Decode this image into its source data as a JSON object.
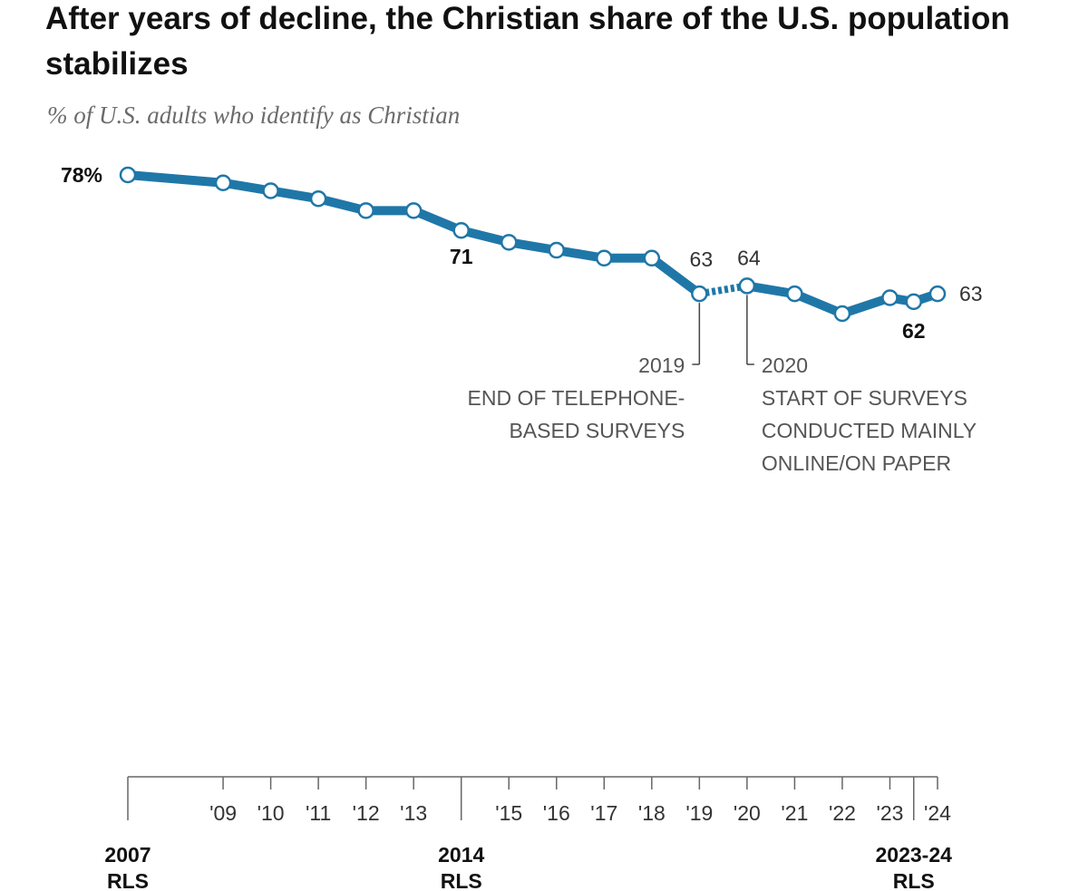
{
  "title": "After years of decline, the Christian share of the U.S. population stabilizes",
  "subtitle": "% of U.S. adults who identify as Christian",
  "colors": {
    "line": "#1f77a8",
    "marker_fill": "#ffffff",
    "text_dark": "#111111",
    "text_gray": "#555555",
    "axis": "#666666"
  },
  "chart_data": {
    "type": "line",
    "title": "After years of decline, the Christian share of the U.S. population stabilizes",
    "subtitle": "% of U.S. adults who identify as Christian",
    "xlabel": "",
    "ylabel": "",
    "x_range": [
      2007,
      2024
    ],
    "y_range": [
      60,
      80
    ],
    "grid": false,
    "series": [
      {
        "name": "",
        "points": [
          {
            "x": 2007,
            "y": 78
          },
          {
            "x": 2009,
            "y": 77
          },
          {
            "x": 2010,
            "y": 76
          },
          {
            "x": 2011,
            "y": 75
          },
          {
            "x": 2012,
            "y": 73.5
          },
          {
            "x": 2013,
            "y": 73.5
          },
          {
            "x": 2014,
            "y": 71
          },
          {
            "x": 2015,
            "y": 69.5
          },
          {
            "x": 2016,
            "y": 68.5
          },
          {
            "x": 2017,
            "y": 67.5
          },
          {
            "x": 2018,
            "y": 67.5
          },
          {
            "x": 2019,
            "y": 63
          },
          {
            "x": 2020,
            "y": 64
          },
          {
            "x": 2021,
            "y": 63
          },
          {
            "x": 2022,
            "y": 60.5
          },
          {
            "x": 2023,
            "y": 62.5
          },
          {
            "x": 2023.5,
            "y": 62
          },
          {
            "x": 2024,
            "y": 63
          }
        ]
      }
    ],
    "break_between": [
      2019,
      2020
    ],
    "data_labels": [
      {
        "x": 2007,
        "y": 78,
        "text": "78%",
        "bold": true
      },
      {
        "x": 2014,
        "y": 71,
        "text": "71",
        "bold": true
      },
      {
        "x": 2019,
        "y": 63,
        "text": "63",
        "bold": false
      },
      {
        "x": 2020,
        "y": 64,
        "text": "64",
        "bold": false
      },
      {
        "x": 2023.5,
        "y": 62,
        "text": "62",
        "bold": true
      },
      {
        "x": 2024,
        "y": 63,
        "text": "63",
        "bold": false
      }
    ],
    "annotations": [
      {
        "x": 2019,
        "side": "left",
        "lines": [
          "2019",
          "END OF TELEPHONE-",
          "BASED SURVEYS"
        ]
      },
      {
        "x": 2020,
        "side": "right",
        "lines": [
          "2020",
          "START OF SURVEYS",
          "CONDUCTED MAINLY",
          "ONLINE/ON PAPER"
        ]
      }
    ],
    "x_ticks": [
      {
        "x": 2007,
        "label": "",
        "major": true
      },
      {
        "x": 2009,
        "label": "'09"
      },
      {
        "x": 2010,
        "label": "'10"
      },
      {
        "x": 2011,
        "label": "'11"
      },
      {
        "x": 2012,
        "label": "'12"
      },
      {
        "x": 2013,
        "label": "'13"
      },
      {
        "x": 2014,
        "label": "",
        "major": true
      },
      {
        "x": 2015,
        "label": "'15"
      },
      {
        "x": 2016,
        "label": "'16"
      },
      {
        "x": 2017,
        "label": "'17"
      },
      {
        "x": 2018,
        "label": "'18"
      },
      {
        "x": 2019,
        "label": "'19"
      },
      {
        "x": 2020,
        "label": "'20"
      },
      {
        "x": 2021,
        "label": "'21"
      },
      {
        "x": 2022,
        "label": "'22"
      },
      {
        "x": 2023,
        "label": "'23"
      },
      {
        "x": 2023.5,
        "label": "",
        "major": true
      },
      {
        "x": 2024,
        "label": "'24"
      }
    ],
    "major_labels": [
      {
        "x": 2007,
        "lines": [
          "2007",
          "RLS"
        ]
      },
      {
        "x": 2014,
        "lines": [
          "2014",
          "RLS"
        ]
      },
      {
        "x": 2023.5,
        "lines": [
          "2023-24",
          "RLS"
        ]
      }
    ]
  }
}
